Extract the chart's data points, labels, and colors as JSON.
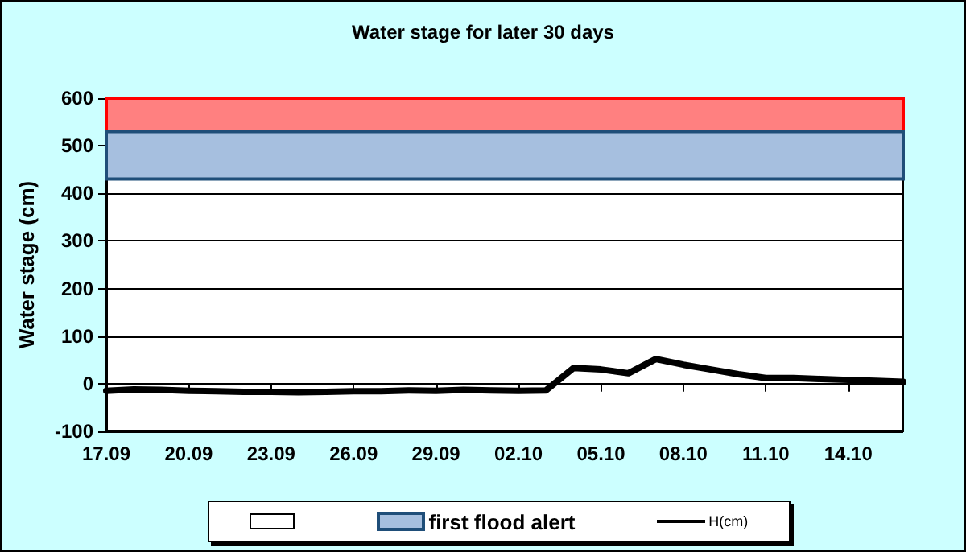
{
  "chart_data": {
    "type": "line",
    "title": "Water stage for later 30 days",
    "ylabel": "Water stage (cm)",
    "x": [
      "--09-17",
      "--09-18",
      "--09-19",
      "--09-20",
      "--09-21",
      "--09-22",
      "--09-23",
      "--09-24",
      "--09-25",
      "--09-26",
      "--09-27",
      "--09-28",
      "--09-29",
      "--09-30",
      "--10-01",
      "--10-02",
      "--10-03",
      "--10-04",
      "--10-05",
      "--10-06",
      "--10-07",
      "--10-08",
      "--10-09",
      "--10-10",
      "--10-11",
      "--10-12",
      "--10-13",
      "--10-14",
      "--10-15",
      "--10-16"
    ],
    "series": [
      {
        "name": "H(cm)",
        "color": "#000000",
        "values": [
          -15,
          -12,
          -13,
          -15,
          -16,
          -17,
          -17,
          -18,
          -17,
          -16,
          -16,
          -14,
          -15,
          -13,
          -14,
          -15,
          -14,
          33,
          30,
          22,
          52,
          40,
          30,
          20,
          12,
          12,
          10,
          8,
          6,
          4
        ]
      }
    ],
    "xlim": [
      "--09-17",
      "--10-16"
    ],
    "xticks": [
      {
        "value": "--09-17",
        "label": "17.09"
      },
      {
        "value": "--09-20",
        "label": "20.09"
      },
      {
        "value": "--09-23",
        "label": "23.09"
      },
      {
        "value": "--09-26",
        "label": "26.09"
      },
      {
        "value": "--09-29",
        "label": "29.09"
      },
      {
        "value": "--10-02",
        "label": "02.10"
      },
      {
        "value": "--10-05",
        "label": "05.10"
      },
      {
        "value": "--10-08",
        "label": "08.10"
      },
      {
        "value": "--10-11",
        "label": "11.10"
      },
      {
        "value": "--10-14",
        "label": "14.10"
      }
    ],
    "ylim": [
      -100,
      600
    ],
    "yticks": [
      -100,
      0,
      100,
      200,
      300,
      400,
      500,
      600
    ],
    "bands": [
      {
        "axis": "y",
        "from": 530,
        "to": 600,
        "color": "#ff8080"
      },
      {
        "axis": "y",
        "from": 430,
        "to": 530,
        "label": "first flood alert",
        "color": "#a6bfdf"
      }
    ],
    "grid": "y",
    "legend": "bottom",
    "marker": "none",
    "line_style": "solid"
  }
}
